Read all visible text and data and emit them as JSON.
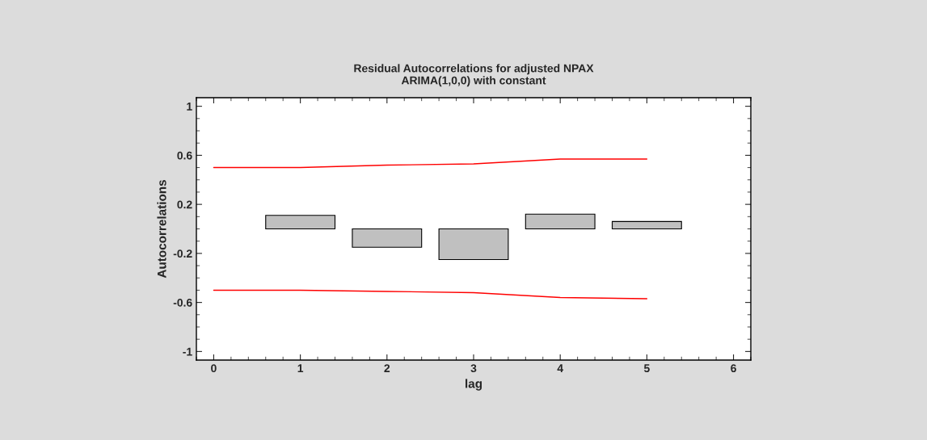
{
  "chart_data": {
    "type": "bar",
    "title": "Residual Autocorrelations for adjusted NPAX\nARIMA(1,0,0) with constant",
    "xlabel": "lag",
    "ylabel": "Autocorrelations",
    "xlim": [
      -0.2,
      6.2
    ],
    "xticks": [
      0,
      1,
      2,
      3,
      4,
      5,
      6
    ],
    "ylim": [
      -1.07,
      1.07
    ],
    "yticks": [
      -1,
      -0.6,
      -0.2,
      0.2,
      0.6,
      1
    ],
    "grid": false,
    "legend": false,
    "series": [
      {
        "color": "#c0c0c0",
        "x": [
          1,
          2,
          3,
          4,
          5
        ],
        "values": [
          0.11,
          -0.15,
          -0.25,
          0.12,
          0.06
        ]
      },
      {
        "type": "line",
        "color": "#ff0000",
        "x": [
          0,
          1,
          2,
          3,
          4,
          5
        ],
        "values": [
          0.5,
          0.5,
          0.52,
          0.53,
          0.57,
          0.57
        ]
      },
      {
        "type": "line",
        "color": "#ff0000",
        "x": [
          0,
          1,
          2,
          3,
          4,
          5
        ],
        "values": [
          -0.5,
          -0.5,
          -0.51,
          -0.52,
          -0.56,
          -0.57
        ]
      }
    ]
  }
}
